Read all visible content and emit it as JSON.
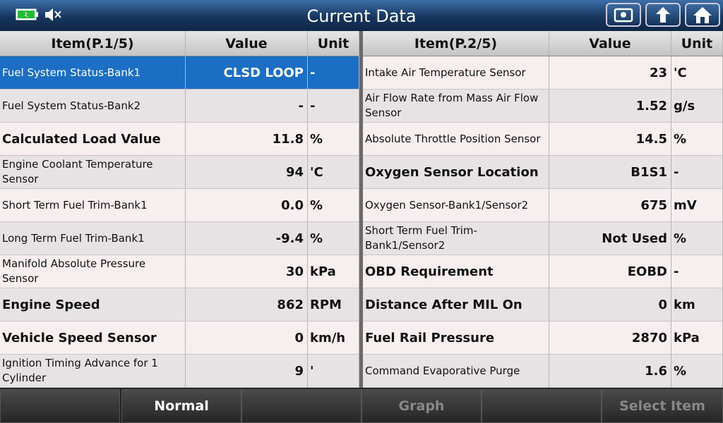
{
  "header": {
    "title": "Current Data"
  },
  "left_table": {
    "columns": [
      "Item(P.1/5)",
      "Value",
      "Unit"
    ],
    "rows": [
      [
        "Fuel System Status-Bank1",
        "CLSD LOOP",
        "-"
      ],
      [
        "Fuel System Status-Bank2",
        "-",
        "-"
      ],
      [
        "Calculated Load Value",
        "11.8",
        "%"
      ],
      [
        "Engine Coolant Temperature Sensor",
        "94",
        "'C"
      ],
      [
        "Short Term Fuel Trim-Bank1",
        "0.0",
        "%"
      ],
      [
        "Long Term Fuel Trim-Bank1",
        "-9.4",
        "%"
      ],
      [
        "Manifold Absolute Pressure Sensor",
        "30",
        "kPa"
      ],
      [
        "Engine Speed",
        "862",
        "RPM"
      ],
      [
        "Vehicle Speed Sensor",
        "0",
        "km/h"
      ],
      [
        "Ignition Timing Advance for 1 Cylinder",
        "9",
        "'"
      ]
    ]
  },
  "right_table": {
    "columns": [
      "Item(P.2/5)",
      "Value",
      "Unit"
    ],
    "rows": [
      [
        "Intake Air Temperature Sensor",
        "23",
        "'C"
      ],
      [
        "Air Flow Rate from Mass Air Flow Sensor",
        "1.52",
        "g/s"
      ],
      [
        "Absolute Throttle Position Sensor",
        "14.5",
        "%"
      ],
      [
        "Oxygen Sensor Location",
        "B1S1",
        "-"
      ],
      [
        "Oxygen Sensor-Bank1/Sensor2",
        "675",
        "mV"
      ],
      [
        "Short Term Fuel Trim-Bank1/Sensor2",
        "Not Used",
        "%"
      ],
      [
        "OBD Requirement",
        "EOBD",
        "-"
      ],
      [
        "Distance After MIL On",
        "0",
        "km"
      ],
      [
        "Fuel Rail Pressure",
        "2870",
        "kPa"
      ],
      [
        "Command Evaporative Purge",
        "1.6",
        "%"
      ]
    ]
  },
  "footer": {
    "buttons": [
      "Normal",
      "Graph",
      "Select Item"
    ]
  }
}
